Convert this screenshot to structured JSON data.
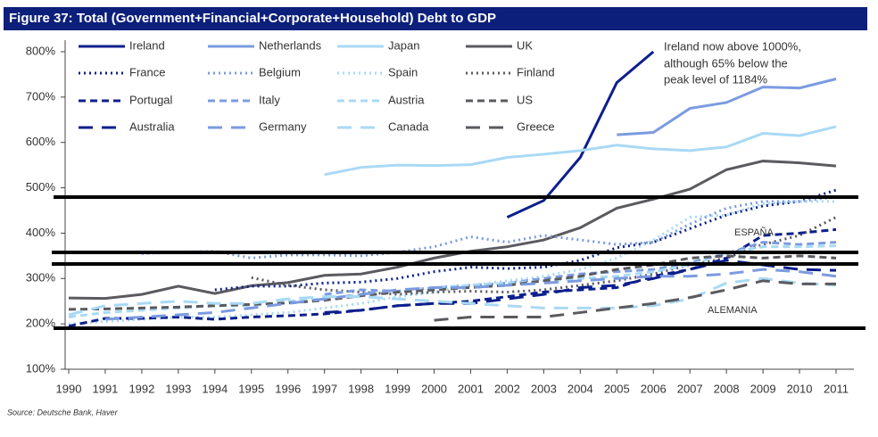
{
  "chart_data": {
    "type": "line",
    "title": "Figure 37: Total (Government+Financial+Corporate+Household) Debt to GDP",
    "source": "Source: Deutsche Bank, Haver",
    "annotations": [
      "Ireland now above 1000%,",
      "although 65% below the",
      "peak level of 1184%",
      "ESPAÑA",
      "ALEMANIA"
    ],
    "x": [
      1990,
      1991,
      1992,
      1993,
      1994,
      1995,
      1996,
      1997,
      1998,
      1999,
      2000,
      2001,
      2002,
      2003,
      2004,
      2005,
      2006,
      2007,
      2008,
      2009,
      2010,
      2011
    ],
    "ylim": [
      100,
      800
    ],
    "yticks": [
      {
        "value": 100,
        "label": "100%"
      },
      {
        "value": 200,
        "label": "200%"
      },
      {
        "value": 300,
        "label": "300%"
      },
      {
        "value": 400,
        "label": "400%"
      },
      {
        "value": 500,
        "label": "500%"
      },
      {
        "value": 600,
        "label": "600%"
      },
      {
        "value": 700,
        "label": "700%"
      },
      {
        "value": 800,
        "label": "800%"
      }
    ],
    "series": [
      {
        "name": "Ireland",
        "color": "#0d1f8c",
        "style": "solid",
        "values": [
          null,
          null,
          null,
          null,
          null,
          null,
          null,
          null,
          null,
          null,
          null,
          null,
          435,
          472,
          567,
          732,
          800,
          null,
          null,
          null,
          null,
          null
        ]
      },
      {
        "name": "Netherlands",
        "color": "#7b9be0",
        "style": "solid",
        "values": [
          null,
          null,
          null,
          null,
          null,
          null,
          null,
          null,
          null,
          null,
          null,
          null,
          null,
          null,
          null,
          617,
          622,
          675,
          688,
          722,
          720,
          740
        ]
      },
      {
        "name": "Japan",
        "color": "#a9d9f5",
        "style": "solid",
        "values": [
          null,
          null,
          null,
          null,
          null,
          null,
          null,
          529,
          545,
          550,
          549,
          551,
          567,
          574,
          582,
          594,
          586,
          582,
          590,
          620,
          615,
          635
        ]
      },
      {
        "name": "UK",
        "color": "#5a5a5f",
        "style": "solid",
        "values": [
          257,
          256,
          265,
          283,
          267,
          284,
          291,
          307,
          310,
          325,
          345,
          360,
          370,
          385,
          412,
          455,
          475,
          497,
          540,
          559,
          555,
          548
        ]
      },
      {
        "name": "France",
        "color": "#0d1f8c",
        "style": "dotted",
        "values": [
          null,
          null,
          null,
          null,
          275,
          283,
          283,
          290,
          292,
          300,
          315,
          325,
          322,
          325,
          340,
          368,
          380,
          410,
          440,
          460,
          470,
          495
        ]
      },
      {
        "name": "Belgium",
        "color": "#7b9be0",
        "style": "dotted",
        "values": [
          null,
          null,
          355,
          358,
          360,
          345,
          352,
          352,
          350,
          358,
          370,
          392,
          380,
          395,
          385,
          375,
          380,
          420,
          455,
          470,
          470,
          480
        ]
      },
      {
        "name": "Spain",
        "color": "#a9d9f5",
        "style": "dotted",
        "values": [
          200,
          205,
          210,
          215,
          215,
          220,
          225,
          235,
          245,
          260,
          270,
          285,
          295,
          305,
          320,
          345,
          385,
          435,
          440,
          465,
          470,
          470
        ]
      },
      {
        "name": "Finland",
        "color": "#5a5a5f",
        "style": "dotted",
        "values": [
          null,
          null,
          null,
          null,
          null,
          302,
          285,
          275,
          270,
          265,
          270,
          272,
          270,
          275,
          285,
          295,
          310,
          330,
          345,
          375,
          395,
          435
        ]
      },
      {
        "name": "Portugal",
        "color": "#0d1f8c",
        "style": "dashed",
        "values": [
          195,
          212,
          212,
          215,
          210,
          215,
          218,
          222,
          230,
          240,
          245,
          250,
          260,
          270,
          275,
          280,
          305,
          320,
          345,
          395,
          400,
          408
        ]
      },
      {
        "name": "Italy",
        "color": "#7b9be0",
        "style": "dashed",
        "values": [
          null,
          null,
          null,
          null,
          null,
          null,
          null,
          265,
          275,
          272,
          280,
          285,
          290,
          300,
          310,
          315,
          320,
          335,
          355,
          380,
          375,
          380
        ]
      },
      {
        "name": "Austria",
        "color": "#a9d9f5",
        "style": "dashed",
        "values": [
          215,
          225,
          230,
          235,
          240,
          240,
          250,
          255,
          265,
          270,
          280,
          285,
          290,
          295,
          300,
          305,
          315,
          330,
          355,
          370,
          370,
          372
        ]
      },
      {
        "name": "US",
        "color": "#5a5a5f",
        "style": "dashed",
        "values": [
          232,
          233,
          235,
          237,
          240,
          243,
          246,
          252,
          262,
          270,
          275,
          280,
          285,
          295,
          305,
          320,
          330,
          345,
          350,
          345,
          350,
          345
        ]
      },
      {
        "name": "Australia",
        "color": "#0d1f8c",
        "style": "long-dashed",
        "values": [
          null,
          null,
          null,
          null,
          null,
          null,
          null,
          225,
          230,
          240,
          245,
          245,
          255,
          265,
          280,
          285,
          300,
          320,
          340,
          330,
          320,
          318
        ]
      },
      {
        "name": "Germany",
        "color": "#7b9be0",
        "style": "long-dashed",
        "values": [
          null,
          210,
          215,
          220,
          225,
          235,
          245,
          255,
          265,
          275,
          280,
          280,
          285,
          290,
          295,
          300,
          305,
          305,
          310,
          320,
          315,
          305
        ]
      },
      {
        "name": "Canada",
        "color": "#a9d9f5",
        "style": "long-dashed",
        "values": [
          220,
          240,
          245,
          250,
          245,
          245,
          255,
          260,
          260,
          255,
          250,
          245,
          240,
          235,
          235,
          235,
          240,
          255,
          290,
          300,
          290,
          285
        ]
      },
      {
        "name": "Greece",
        "color": "#5a5a5f",
        "style": "long-dashed",
        "values": [
          null,
          null,
          null,
          null,
          null,
          null,
          null,
          null,
          null,
          null,
          208,
          215,
          215,
          215,
          225,
          235,
          245,
          258,
          275,
          295,
          288,
          288
        ]
      }
    ]
  }
}
